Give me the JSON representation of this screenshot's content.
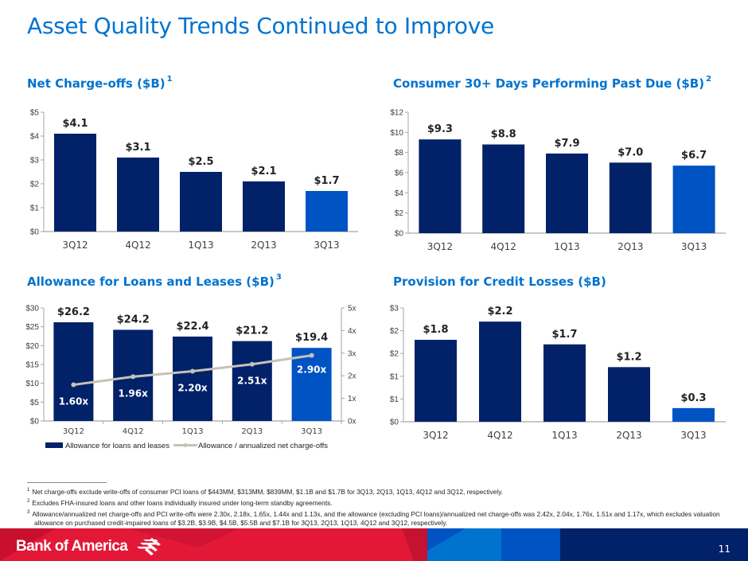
{
  "page": {
    "title": "Asset Quality Trends Continued to Improve",
    "page_number": "11",
    "brand": "Bank of America",
    "colors": {
      "title_blue": "#0073CF",
      "bar_navy": "#012169",
      "bar_highlight": "#0053C3",
      "line_gray": "#C8C1B8",
      "footer_red": "#E31837",
      "footer_darkred": "#C41230",
      "footer_lightblue": "#0073CF",
      "footer_midblue": "#0053C3",
      "footer_navy": "#012169"
    }
  },
  "footnotes": [
    {
      "mark": "1",
      "text": "Net charge-offs exclude write-offs of consumer PCI loans of $443MM, $313MM, $839MM, $1.1B and $1.7B for 3Q13, 2Q13, 1Q13, 4Q12 and 3Q12, respectively."
    },
    {
      "mark": "2",
      "text": "Excludes FHA-insured loans and other loans individually insured under long-term standby agreements."
    },
    {
      "mark": "3",
      "text": "Allowance/annualized net charge-offs and PCI write-offs were 2.30x, 2.18x, 1.65x, 1.44x and 1.13x, and the allowance (excluding PCI loans)/annualized net charge-offs was 2.42x, 2.04x, 1.76x, 1.51x and 1.17x, which excludes valuation allowance on purchased credit-impaired loans of $3.2B, $3.9B, $4.5B, $5.5B and $7.1B for 3Q13, 2Q13, 1Q13, 4Q12 and 3Q12, respectively."
    }
  ],
  "chart_data": [
    {
      "id": "net-charge-offs",
      "type": "bar",
      "title": "Net Charge-offs ($B)",
      "footnote_ref": "1",
      "categories": [
        "3Q12",
        "4Q12",
        "1Q13",
        "2Q13",
        "3Q13"
      ],
      "values": [
        4.1,
        3.1,
        2.5,
        2.1,
        1.7
      ],
      "data_labels": [
        "$4.1",
        "$3.1",
        "$2.5",
        "$2.1",
        "$1.7"
      ],
      "highlight_last": true,
      "ylim": [
        0,
        5
      ],
      "yticks": [
        0,
        1,
        2,
        3,
        4,
        5
      ],
      "ytick_labels": [
        "$0",
        "$1",
        "$2",
        "$3",
        "$4",
        "$5"
      ],
      "xlabel": "",
      "ylabel": "",
      "grid": false
    },
    {
      "id": "consumer-30-plus",
      "type": "bar",
      "title": "Consumer 30+ Days Performing Past Due ($B)",
      "footnote_ref": "2",
      "categories": [
        "3Q12",
        "4Q12",
        "1Q13",
        "2Q13",
        "3Q13"
      ],
      "values": [
        9.3,
        8.8,
        7.9,
        7.0,
        6.7
      ],
      "data_labels": [
        "$9.3",
        "$8.8",
        "$7.9",
        "$7.0",
        "$6.7"
      ],
      "highlight_last": true,
      "ylim": [
        0,
        12
      ],
      "yticks": [
        0,
        2,
        4,
        6,
        8,
        10,
        12
      ],
      "ytick_labels": [
        "$0",
        "$2",
        "$4",
        "$6",
        "$8",
        "$10",
        "$12"
      ],
      "xlabel": "",
      "ylabel": "",
      "grid": false
    },
    {
      "id": "allowance",
      "type": "bar",
      "title": "Allowance for Loans and Leases ($B)",
      "footnote_ref": "3",
      "categories": [
        "3Q12",
        "4Q12",
        "1Q13",
        "2Q13",
        "3Q13"
      ],
      "series": [
        {
          "name": "Allowance for loans and leases",
          "kind": "bar",
          "axis": "left",
          "values": [
            26.2,
            24.2,
            22.4,
            21.2,
            19.4
          ],
          "data_labels": [
            "$26.2",
            "$24.2",
            "$22.4",
            "$21.2",
            "$19.4"
          ]
        },
        {
          "name": "Allowance / annualized net charge-offs",
          "kind": "line",
          "axis": "right",
          "values": [
            1.6,
            1.96,
            2.2,
            2.51,
            2.9
          ],
          "data_labels": [
            "1.60x",
            "1.96x",
            "2.20x",
            "2.51x",
            "2.90x"
          ]
        }
      ],
      "highlight_last": true,
      "ylim": [
        0,
        30
      ],
      "yticks": [
        0,
        5,
        10,
        15,
        20,
        25,
        30
      ],
      "ytick_labels": [
        "$0",
        "$5",
        "$10",
        "$15",
        "$20",
        "$25",
        "$30"
      ],
      "y2lim": [
        0,
        5
      ],
      "y2ticks": [
        0,
        1,
        2,
        3,
        4,
        5
      ],
      "y2tick_labels": [
        "0x",
        "1x",
        "2x",
        "3x",
        "4x",
        "5x"
      ],
      "legend": "bottom",
      "xlabel": "",
      "ylabel": "",
      "grid": false
    },
    {
      "id": "provision",
      "type": "bar",
      "title": "Provision for Credit Losses ($B)",
      "footnote_ref": "",
      "categories": [
        "3Q12",
        "4Q12",
        "1Q13",
        "2Q13",
        "3Q13"
      ],
      "values": [
        1.8,
        2.2,
        1.7,
        1.2,
        0.3
      ],
      "data_labels": [
        "$1.8",
        "$2.2",
        "$1.7",
        "$1.2",
        "$0.3"
      ],
      "highlight_last": true,
      "ylim": [
        0,
        2.5
      ],
      "yticks": [
        0,
        0.5,
        1.0,
        1.5,
        2.0,
        2.5
      ],
      "ytick_labels": [
        "$0",
        "$1",
        "$1",
        "$2",
        "$2",
        "$3"
      ],
      "xlabel": "",
      "ylabel": "",
      "grid": false
    }
  ]
}
